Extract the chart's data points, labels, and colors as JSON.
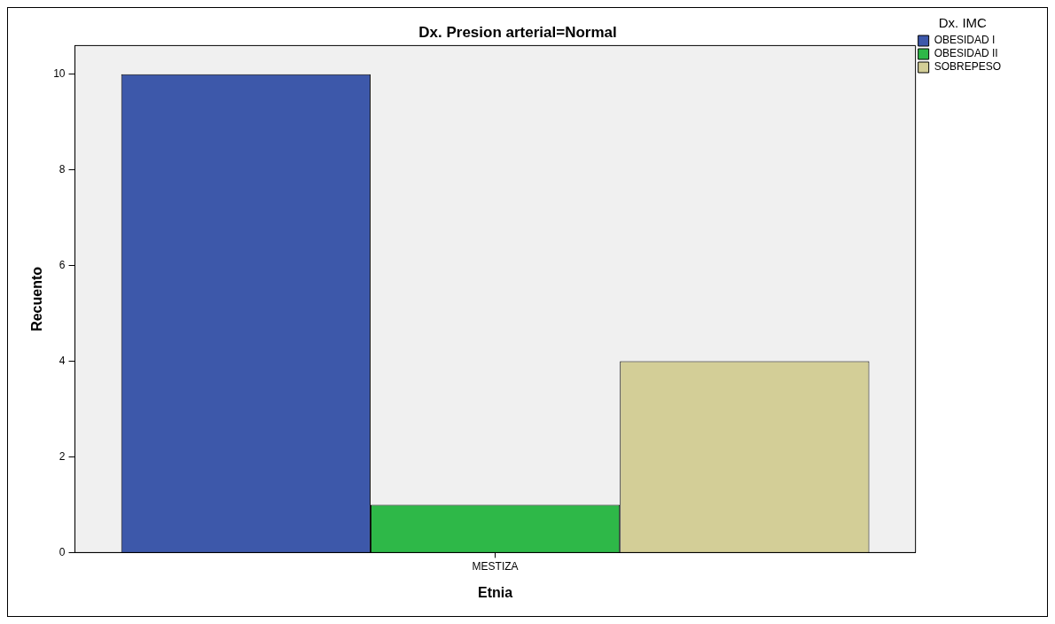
{
  "chart_data": {
    "type": "bar",
    "title": "Dx. Presion arterial=Normal",
    "xlabel": "Etnia",
    "ylabel": "Recuento",
    "legend_title": "Dx. IMC",
    "categories": [
      "MESTIZA"
    ],
    "series": [
      {
        "name": "OBESIDAD I",
        "color": "#3d58aa",
        "values": [
          10
        ]
      },
      {
        "name": "OBESIDAD II",
        "color": "#2eb848",
        "values": [
          1
        ]
      },
      {
        "name": "SOBREPESO",
        "color": "#d3ce97",
        "values": [
          4
        ]
      }
    ],
    "ylim": [
      0,
      10.6
    ],
    "yticks": [
      0,
      2,
      4,
      6,
      8,
      10
    ],
    "legend": "top right"
  }
}
